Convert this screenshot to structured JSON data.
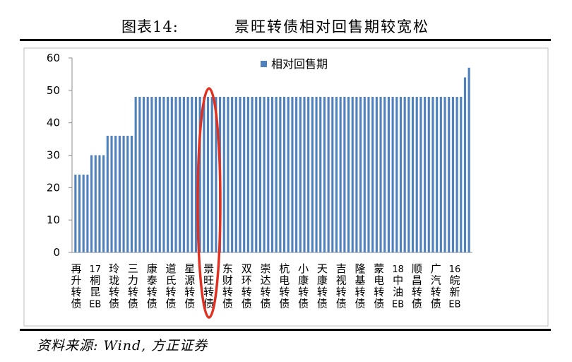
{
  "header": {
    "figure_number": "图表14:",
    "figure_title": "景旺转债相对回售期较宽松"
  },
  "footer": {
    "source": "资料来源: Wind, 方正证券"
  },
  "colors": {
    "bar": "#4f81bd",
    "highlight_ellipse": "#e03020",
    "axis": "#8c8c8c",
    "frame": "#bfbfbf"
  },
  "chart_data": {
    "type": "bar",
    "title": "",
    "xlabel": "",
    "ylabel": "",
    "ylim": [
      0,
      60
    ],
    "yticks": [
      0,
      10,
      20,
      30,
      40,
      50,
      60
    ],
    "grid": false,
    "legend_position": "top-center",
    "highlight": "景旺转债",
    "series": [
      {
        "name": "相对回售期",
        "values": [
          24,
          24,
          24,
          24,
          30,
          30,
          30,
          30,
          36,
          36,
          36,
          36,
          36,
          36,
          36,
          48,
          48,
          48,
          48,
          48,
          48,
          48,
          48,
          48,
          48,
          48,
          48,
          48,
          48,
          48,
          48,
          48,
          48,
          48,
          48,
          48,
          48,
          48,
          48,
          48,
          48,
          48,
          48,
          48,
          48,
          48,
          48,
          48,
          48,
          48,
          48,
          48,
          48,
          48,
          48,
          48,
          48,
          48,
          48,
          48,
          48,
          48,
          48,
          48,
          48,
          48,
          48,
          48,
          48,
          48,
          48,
          48,
          48,
          48,
          48,
          48,
          48,
          48,
          48,
          48,
          48,
          48,
          48,
          48,
          48,
          48,
          48,
          48,
          48,
          48,
          48,
          48,
          48,
          48,
          48,
          48,
          48,
          54,
          57
        ]
      }
    ],
    "category_labels": [
      {
        "text": "再升转债",
        "index": 1
      },
      {
        "text": "17桐昆EB",
        "index": 6
      },
      {
        "text": "玲珑转债",
        "index": 12
      },
      {
        "text": "三力转债",
        "index": 17
      },
      {
        "text": "康泰转债",
        "index": 22
      },
      {
        "text": "道氏转债",
        "index": 27
      },
      {
        "text": "星源转债",
        "index": 32
      },
      {
        "text": "景旺转债",
        "index": 37
      },
      {
        "text": "东财转债",
        "index": 42
      },
      {
        "text": "双环转债",
        "index": 47
      },
      {
        "text": "崇达转债",
        "index": 52
      },
      {
        "text": "杭电转债",
        "index": 57
      },
      {
        "text": "小康转债",
        "index": 62
      },
      {
        "text": "天康转债",
        "index": 67
      },
      {
        "text": "吉视转债",
        "index": 72
      },
      {
        "text": "隆基转债",
        "index": 77
      },
      {
        "text": "蒙电转债",
        "index": 82
      },
      {
        "text": "18中油EB",
        "index": 87
      },
      {
        "text": "顺昌转债",
        "index": 92
      },
      {
        "text": "广汽转债",
        "index": 97
      },
      {
        "text": "16皖新EB",
        "index": 102
      }
    ]
  }
}
